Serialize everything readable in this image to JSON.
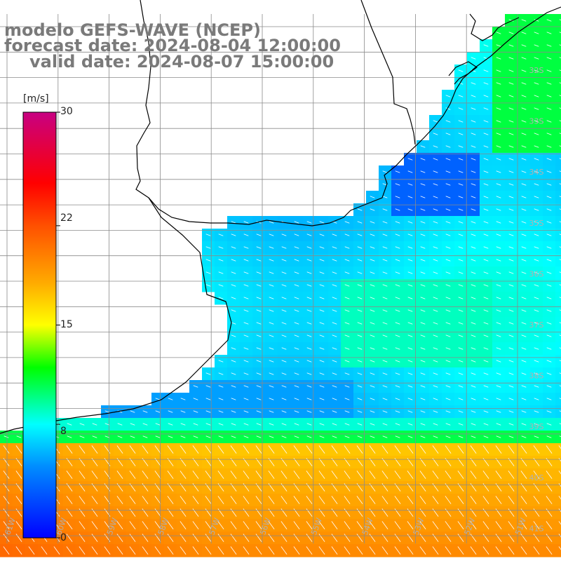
{
  "title": {
    "line1": "modelo GEFS-WAVE (NCEP)",
    "line2": "forecast date: 2024-08-04 12:00:00",
    "line3": "valid date: 2024-08-07 15:00:00"
  },
  "colorbar": {
    "unit": "[m/s]",
    "ticks": [
      "30",
      "22",
      "15",
      "8",
      "0"
    ],
    "tick_values": [
      30,
      22,
      15,
      8,
      0
    ],
    "range": [
      0,
      30
    ]
  },
  "lat_labels": [
    "32S",
    "33S",
    "34S",
    "35S",
    "36S",
    "37S",
    "38S",
    "39S",
    "40S",
    "41S"
  ],
  "lon_labels": [
    "61W",
    "60W",
    "59W",
    "58W",
    "57W",
    "56W",
    "55W",
    "54W",
    "53W",
    "52W",
    "51W"
  ],
  "colors": {
    "land": "#ffffff",
    "grid": "#8a8a8a",
    "coast": "#000000",
    "label": "#b0b0b0",
    "title": "#7a7a7a"
  }
}
